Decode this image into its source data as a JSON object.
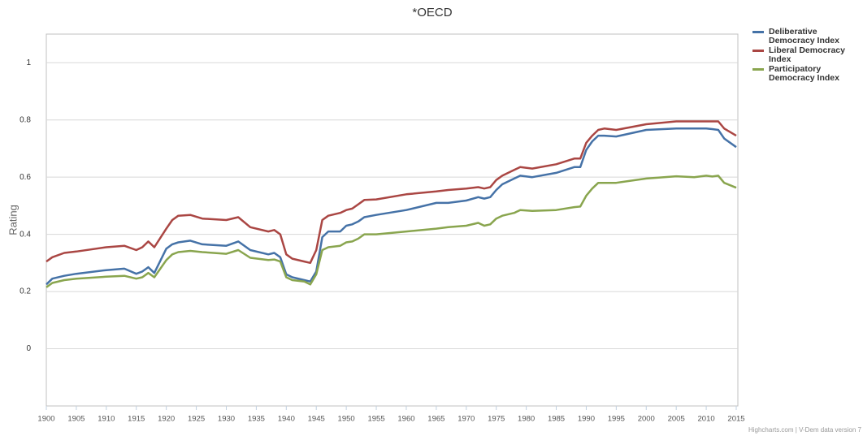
{
  "chart_data": {
    "type": "line",
    "title": "*OECD",
    "y_label": "Rating",
    "credits": "Highcharts.com | V-Dem data version 7",
    "x": [
      1900,
      1901,
      1903,
      1905,
      1910,
      1913,
      1915,
      1916,
      1917,
      1918,
      1920,
      1921,
      1922,
      1924,
      1926,
      1930,
      1932,
      1934,
      1937,
      1938,
      1939,
      1940,
      1941,
      1943,
      1944,
      1945,
      1946,
      1947,
      1949,
      1950,
      1951,
      1952,
      1953,
      1955,
      1960,
      1965,
      1967,
      1970,
      1972,
      1973,
      1974,
      1975,
      1976,
      1978,
      1979,
      1981,
      1985,
      1988,
      1989,
      1990,
      1991,
      1992,
      1993,
      1995,
      2000,
      2005,
      2008,
      2010,
      2011,
      2012,
      2013,
      2015
    ],
    "series": [
      {
        "name": "Deliberative Democracy Index",
        "color": "#4572a7",
        "values": [
          0.225,
          0.245,
          0.255,
          0.262,
          0.275,
          0.28,
          0.262,
          0.27,
          0.285,
          0.265,
          0.35,
          0.365,
          0.372,
          0.378,
          0.365,
          0.36,
          0.375,
          0.345,
          0.33,
          0.335,
          0.32,
          0.26,
          0.25,
          0.24,
          0.235,
          0.27,
          0.39,
          0.41,
          0.41,
          0.43,
          0.435,
          0.445,
          0.46,
          0.468,
          0.485,
          0.51,
          0.51,
          0.518,
          0.53,
          0.525,
          0.53,
          0.555,
          0.575,
          0.595,
          0.605,
          0.6,
          0.615,
          0.635,
          0.635,
          0.695,
          0.725,
          0.745,
          0.745,
          0.742,
          0.765,
          0.77,
          0.77,
          0.77,
          0.768,
          0.765,
          0.735,
          0.705
        ]
      },
      {
        "name": "Liberal Democracy Index",
        "color": "#aa4643",
        "values": [
          0.305,
          0.32,
          0.335,
          0.34,
          0.355,
          0.36,
          0.345,
          0.355,
          0.375,
          0.355,
          0.42,
          0.45,
          0.465,
          0.468,
          0.455,
          0.45,
          0.46,
          0.425,
          0.41,
          0.415,
          0.4,
          0.33,
          0.315,
          0.305,
          0.3,
          0.345,
          0.45,
          0.465,
          0.475,
          0.485,
          0.49,
          0.505,
          0.52,
          0.522,
          0.54,
          0.55,
          0.555,
          0.56,
          0.565,
          0.56,
          0.565,
          0.59,
          0.605,
          0.625,
          0.635,
          0.63,
          0.645,
          0.665,
          0.665,
          0.72,
          0.745,
          0.765,
          0.77,
          0.765,
          0.785,
          0.795,
          0.795,
          0.795,
          0.795,
          0.795,
          0.77,
          0.745
        ]
      },
      {
        "name": "Participatory Democracy Index",
        "color": "#89a54e",
        "values": [
          0.215,
          0.23,
          0.24,
          0.245,
          0.252,
          0.255,
          0.245,
          0.25,
          0.265,
          0.25,
          0.31,
          0.33,
          0.338,
          0.342,
          0.338,
          0.332,
          0.345,
          0.318,
          0.31,
          0.312,
          0.305,
          0.25,
          0.24,
          0.235,
          0.225,
          0.26,
          0.345,
          0.355,
          0.36,
          0.372,
          0.375,
          0.385,
          0.4,
          0.4,
          0.41,
          0.42,
          0.425,
          0.43,
          0.44,
          0.43,
          0.435,
          0.455,
          0.465,
          0.475,
          0.485,
          0.482,
          0.485,
          0.495,
          0.497,
          0.535,
          0.56,
          0.58,
          0.58,
          0.58,
          0.595,
          0.603,
          0.6,
          0.605,
          0.602,
          0.605,
          0.58,
          0.563
        ]
      }
    ],
    "xlim": [
      1900,
      2015
    ],
    "xticks": [
      1900,
      1905,
      1910,
      1915,
      1920,
      1925,
      1930,
      1935,
      1940,
      1945,
      1950,
      1955,
      1960,
      1965,
      1970,
      1975,
      1980,
      1985,
      1990,
      1995,
      2000,
      2005,
      2010,
      2015
    ],
    "ylim": [
      -0.2,
      1.1
    ],
    "yticks": [
      0,
      0.2,
      0.4,
      0.6,
      0.8,
      1
    ],
    "grid": true,
    "legend": "top-right"
  }
}
